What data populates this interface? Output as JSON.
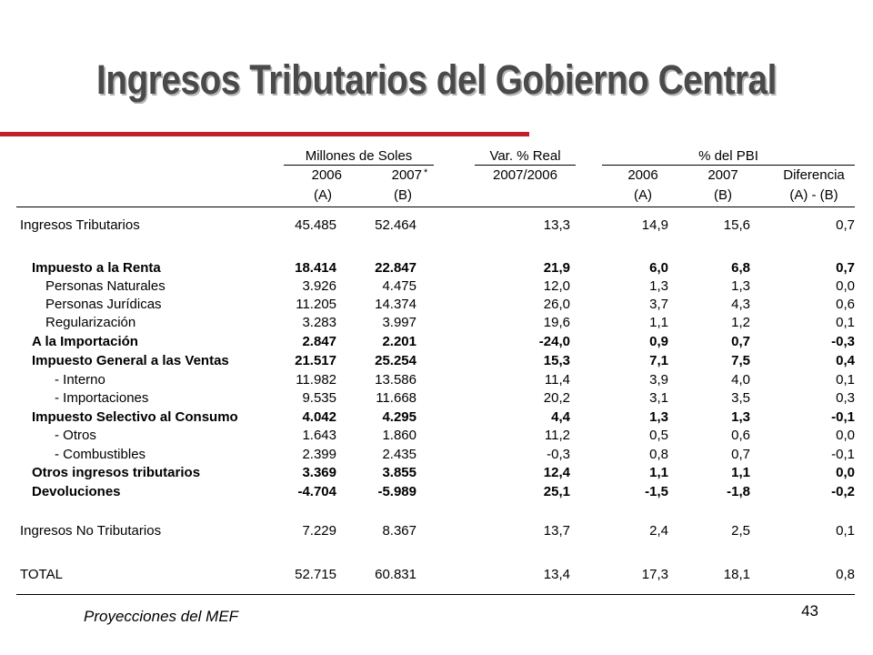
{
  "title": "Ingresos Tributarios del Gobierno Central",
  "headers": {
    "millones": "Millones de Soles",
    "var_real": "Var. % Real",
    "pbi": "% del PBI",
    "y2006": "2006",
    "y2007": "2007",
    "star": "*",
    "y2007_2006": "2007/2006",
    "pbi_2006": "2006",
    "pbi_2007": "2007",
    "diferencia": "Diferencia",
    "a": "(A)",
    "b": "(B)",
    "pa": "(A)",
    "pb": "(B)",
    "amb": "(A) - (B)"
  },
  "rows": [
    {
      "label": "Ingresos Tributarios",
      "v2006": "45.485",
      "v2007": "52.464",
      "var": "13,3",
      "p2006": "14,9",
      "p2007": "15,6",
      "dif": "0,7"
    },
    {
      "label": "Impuesto a la Renta",
      "v2006": "18.414",
      "v2007": "22.847",
      "var": "21,9",
      "p2006": "6,0",
      "p2007": "6,8",
      "dif": "0,7"
    },
    {
      "label": "Personas Naturales",
      "v2006": "3.926",
      "v2007": "4.475",
      "var": "12,0",
      "p2006": "1,3",
      "p2007": "1,3",
      "dif": "0,0"
    },
    {
      "label": "Personas Jurídicas",
      "v2006": "11.205",
      "v2007": "14.374",
      "var": "26,0",
      "p2006": "3,7",
      "p2007": "4,3",
      "dif": "0,6"
    },
    {
      "label": "Regularización",
      "v2006": "3.283",
      "v2007": "3.997",
      "var": "19,6",
      "p2006": "1,1",
      "p2007": "1,2",
      "dif": "0,1"
    },
    {
      "label": "A la Importación",
      "v2006": "2.847",
      "v2007": "2.201",
      "var": "-24,0",
      "p2006": "0,9",
      "p2007": "0,7",
      "dif": "-0,3"
    },
    {
      "label": "Impuesto General a las Ventas",
      "v2006": "21.517",
      "v2007": "25.254",
      "var": "15,3",
      "p2006": "7,1",
      "p2007": "7,5",
      "dif": "0,4"
    },
    {
      "label": "- Interno",
      "v2006": "11.982",
      "v2007": "13.586",
      "var": "11,4",
      "p2006": "3,9",
      "p2007": "4,0",
      "dif": "0,1"
    },
    {
      "label": "- Importaciones",
      "v2006": "9.535",
      "v2007": "11.668",
      "var": "20,2",
      "p2006": "3,1",
      "p2007": "3,5",
      "dif": "0,3"
    },
    {
      "label": "Impuesto Selectivo al Consumo",
      "v2006": "4.042",
      "v2007": "4.295",
      "var": "4,4",
      "p2006": "1,3",
      "p2007": "1,3",
      "dif": "-0,1"
    },
    {
      "label": "- Otros",
      "v2006": "1.643",
      "v2007": "1.860",
      "var": "11,2",
      "p2006": "0,5",
      "p2007": "0,6",
      "dif": "0,0"
    },
    {
      "label": "- Combustibles",
      "v2006": "2.399",
      "v2007": "2.435",
      "var": "-0,3",
      "p2006": "0,8",
      "p2007": "0,7",
      "dif": "-0,1"
    },
    {
      "label": "Otros ingresos tributarios",
      "v2006": "3.369",
      "v2007": "3.855",
      "var": "12,4",
      "p2006": "1,1",
      "p2007": "1,1",
      "dif": "0,0"
    },
    {
      "label": "Devoluciones",
      "v2006": "-4.704",
      "v2007": "-5.989",
      "var": "25,1",
      "p2006": "-1,5",
      "p2007": "-1,8",
      "dif": "-0,2"
    },
    {
      "label": "Ingresos No Tributarios",
      "v2006": "7.229",
      "v2007": "8.367",
      "var": "13,7",
      "p2006": "2,4",
      "p2007": "2,5",
      "dif": "0,1"
    },
    {
      "label": "TOTAL",
      "v2006": "52.715",
      "v2007": "60.831",
      "var": "13,4",
      "p2006": "17,3",
      "p2007": "18,1",
      "dif": "0,8"
    }
  ],
  "footer": {
    "source": "Proyecciones del MEF",
    "page": "43"
  },
  "colors": {
    "accent_line": "#c0202a",
    "title_text": "#4a4a4a"
  }
}
